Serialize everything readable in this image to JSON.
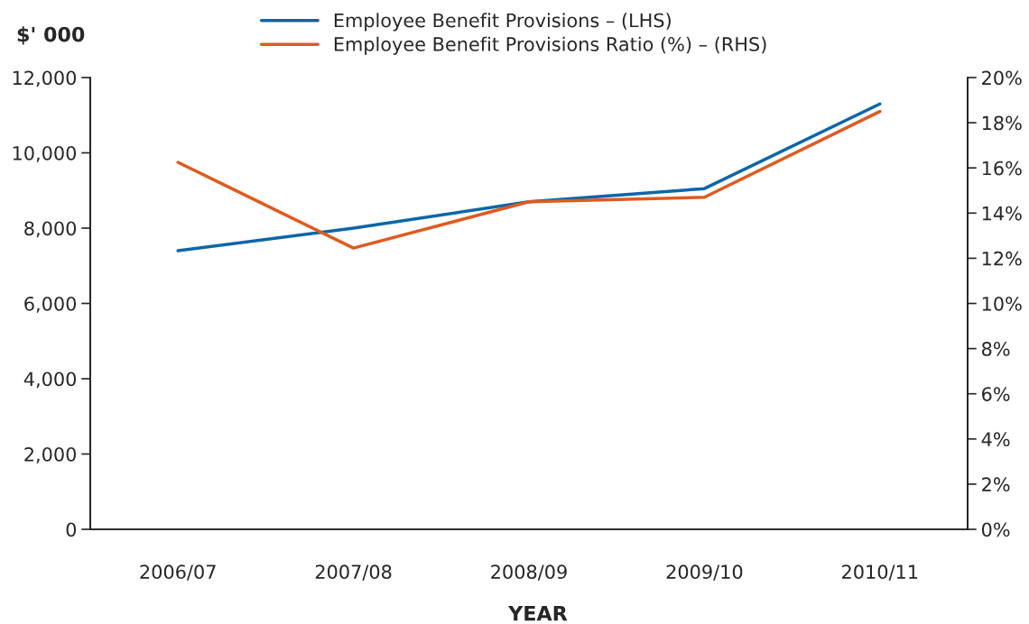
{
  "chart_data": {
    "type": "line",
    "ylabel": "$' 000",
    "xlabel": "YEAR",
    "categories": [
      "2006/07",
      "2007/08",
      "2008/09",
      "2009/10",
      "2010/11"
    ],
    "series": [
      {
        "name": "Employee Benefit Provisions – (LHS)",
        "color": "#0a66a8",
        "values": [
          7400,
          8000,
          8700,
          9050,
          11300
        ]
      },
      {
        "name": "Employee Benefit Provisions Ratio (%) – (RHS)",
        "color": "#e05a1e",
        "values": [
          16.25,
          12.45,
          14.5,
          14.7,
          18.5
        ],
        "axis": "y2"
      }
    ],
    "ylim": [
      0,
      12000
    ],
    "yticks": [
      {
        "value": 0,
        "label": "0"
      },
      {
        "value": 2000,
        "label": "2,000"
      },
      {
        "value": 4000,
        "label": "4,000"
      },
      {
        "value": 6000,
        "label": "6,000"
      },
      {
        "value": 8000,
        "label": "8,000"
      },
      {
        "value": 10000,
        "label": "10,000"
      },
      {
        "value": 12000,
        "label": "12,000"
      }
    ],
    "y2lim": [
      0,
      20
    ],
    "y2ticks": [
      {
        "value": 0,
        "label": "0%"
      },
      {
        "value": 2,
        "label": "2%"
      },
      {
        "value": 4,
        "label": "4%"
      },
      {
        "value": 6,
        "label": "6%"
      },
      {
        "value": 8,
        "label": "8%"
      },
      {
        "value": 10,
        "label": "10%"
      },
      {
        "value": 12,
        "label": "12%"
      },
      {
        "value": 14,
        "label": "14%"
      },
      {
        "value": 16,
        "label": "16%"
      },
      {
        "value": 18,
        "label": "18%"
      },
      {
        "value": 20,
        "label": "20%"
      }
    ],
    "grid": false,
    "legend": "top",
    "marker": "none",
    "line_style": "solid"
  }
}
